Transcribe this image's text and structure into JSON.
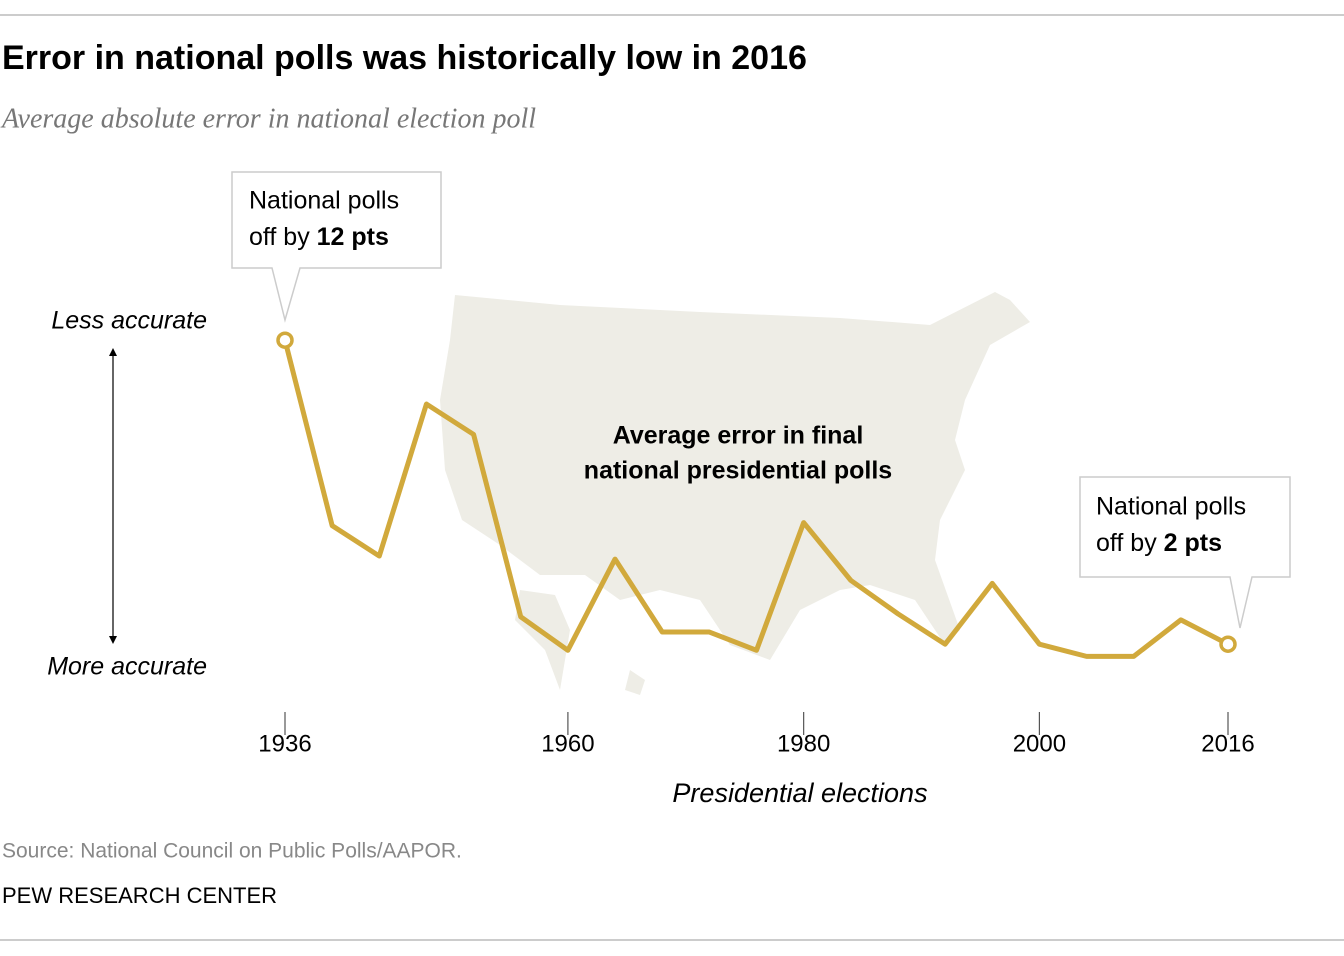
{
  "chart_data": {
    "type": "line",
    "title": "Error in national polls was historically low in 2016",
    "subtitle": "Average absolute error in national election poll",
    "x_label": "Presidential elections",
    "y_label_top": "Less accurate",
    "y_label_bottom": "More accurate",
    "center_annotation": [
      "Average error in final",
      "national presidential polls"
    ],
    "callouts": [
      {
        "line1": "National polls",
        "line2": "off by",
        "bold": "12 pts"
      },
      {
        "line1": "National polls",
        "line2": "off by",
        "bold": "2 pts"
      }
    ],
    "x": [
      1936,
      1940,
      1944,
      1948,
      1952,
      1956,
      1960,
      1964,
      1968,
      1972,
      1976,
      1980,
      1984,
      1988,
      1992,
      1996,
      2000,
      2004,
      2008,
      2012,
      2016
    ],
    "values": [
      12,
      5.9,
      4.9,
      9.9,
      8.9,
      2.9,
      1.8,
      4.8,
      2.4,
      2.4,
      1.8,
      6.0,
      4.1,
      3.0,
      2.0,
      4.0,
      2.0,
      1.6,
      1.6,
      2.8,
      2.0
    ],
    "color": "#d1a93c",
    "xlim": [
      1936,
      2016
    ],
    "xticks": [
      1936,
      1960,
      1980,
      2000,
      2016
    ],
    "ylim": [
      0,
      14
    ],
    "source": "Source: National Council on Public Polls/AAPOR.",
    "footer": "PEW RESEARCH CENTER"
  }
}
